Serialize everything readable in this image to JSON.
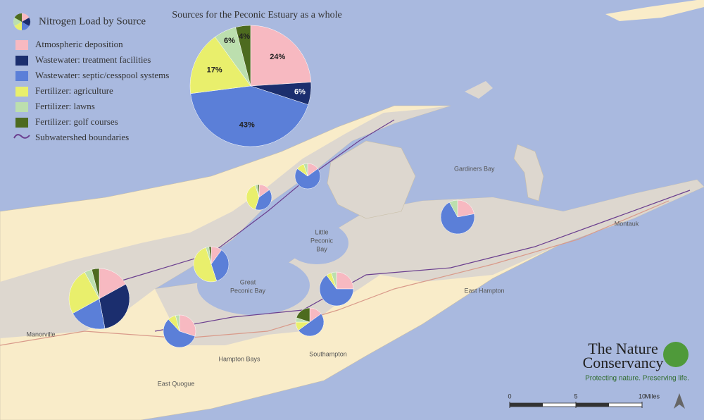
{
  "legend": {
    "title": "Nitrogen Load by Source",
    "boundary": "Subwatershed boundaries"
  },
  "chart_data": {
    "type": "pie",
    "title": "Sources for the Peconic Estuary as a whole",
    "categories": [
      "Atmospheric deposition",
      "Wastewater: treatment facilities",
      "Wastewater: septic/cesspool systems",
      "Fertilizer: agriculture",
      "Fertilizer: lawns",
      "Fertilizer: golf courses"
    ],
    "values": [
      24,
      6,
      43,
      17,
      6,
      4
    ],
    "value_labels": [
      "24%",
      "6%",
      "43%",
      "17%",
      "6%",
      "4%"
    ],
    "colors": [
      "#f7b9c1",
      "#1b2e6e",
      "#5b7fd8",
      "#e9ef6c",
      "#bcdfae",
      "#4d6b1f"
    ]
  },
  "map_pies": [
    {
      "values": [
        17,
        30,
        20,
        25,
        4,
        4
      ]
    },
    {
      "values": [
        22,
        0,
        70,
        0,
        8,
        0
      ]
    },
    {
      "values": [
        25,
        0,
        65,
        5,
        5,
        0
      ]
    },
    {
      "values": [
        10,
        0,
        35,
        50,
        3,
        2
      ]
    },
    {
      "values": [
        30,
        0,
        58,
        8,
        4,
        0
      ]
    },
    {
      "values": [
        15,
        0,
        50,
        10,
        5,
        20
      ]
    },
    {
      "values": [
        15,
        0,
        40,
        40,
        3,
        2
      ]
    },
    {
      "values": [
        15,
        0,
        70,
        10,
        5,
        0
      ]
    }
  ],
  "map_labels": [
    "Gardiners Bay",
    "Little",
    "Peconic",
    "Bay",
    "Great",
    "Peconic Bay",
    "East Hampton",
    "Montauk",
    "Manorville",
    "Hampton Bays",
    "Southampton",
    "East Quogue"
  ],
  "scale_bar": {
    "ticks": [
      0,
      5,
      10
    ],
    "unit": "Miles"
  },
  "logo": {
    "line1": "The Nature",
    "line2": "Conservancy",
    "tagline": "Protecting nature. Preserving life."
  }
}
